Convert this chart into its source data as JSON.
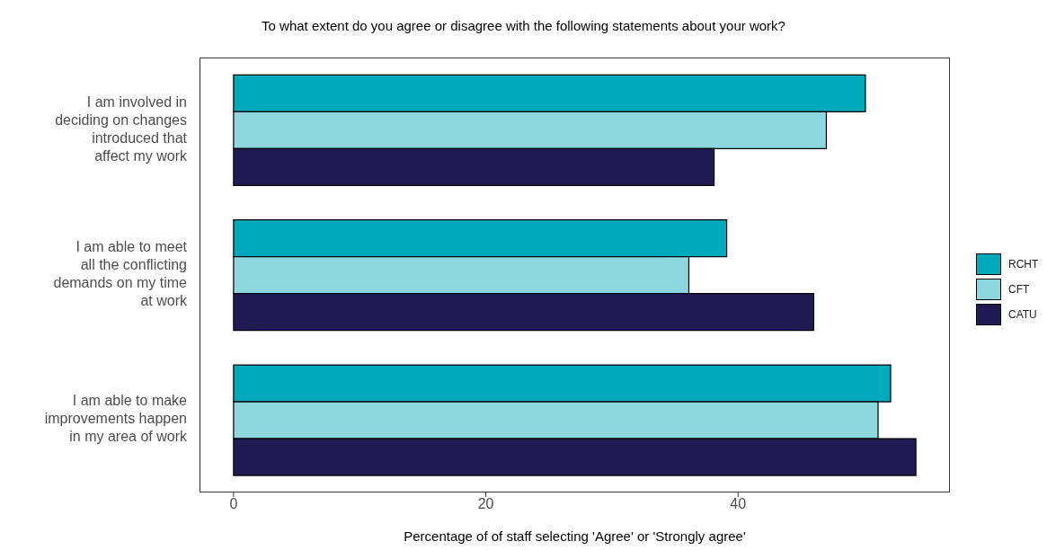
{
  "chart_data": {
    "type": "bar",
    "orientation": "horizontal",
    "title": "To what extent do you agree or disagree with the following statements about your work?",
    "xlabel": "Percentage of of staff selecting 'Agree' or 'Strongly agree'",
    "categories": [
      "I am involved in deciding on changes introduced that affect my work",
      "I am able to meet all the conflicting demands on my time at work",
      "I am able to make improvements happen in my area of work"
    ],
    "series": [
      {
        "name": "RCHT",
        "color": "#00a9bc",
        "values": [
          50.1,
          39.1,
          52.1
        ]
      },
      {
        "name": "CFT",
        "color": "#8dd7de",
        "values": [
          47.0,
          36.1,
          51.1
        ]
      },
      {
        "name": "CATU",
        "color": "#221a52",
        "values": [
          38.1,
          46.0,
          54.1
        ]
      }
    ],
    "xlim": [
      -2.7,
      56.8
    ],
    "xticks": [
      0,
      20,
      40
    ],
    "legend": "right"
  }
}
